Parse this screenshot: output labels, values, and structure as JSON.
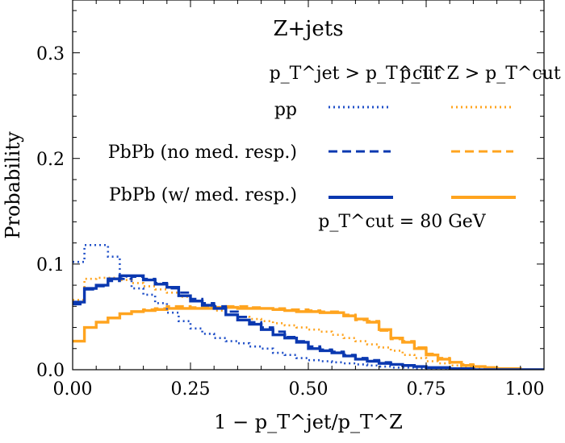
{
  "chart_data": {
    "type": "line",
    "title": "Z+jets",
    "xlabel": "1 − p_T^jet/p_T^Z",
    "ylabel": "Probability",
    "xlim": [
      0,
      1
    ],
    "ylim": [
      0,
      0.35
    ],
    "xticks": [
      "0.00",
      "0.25",
      "0.50",
      "0.75",
      "1.00"
    ],
    "yticks": [
      "0.0",
      "0.1",
      "0.2",
      "0.3"
    ],
    "legend": {
      "col_headers": [
        "p_T^jet > p_T^cut",
        "p_T^Z > p_T^cut"
      ],
      "row_labels": [
        "pp",
        "PbPb (no med. resp.)",
        "PbPb (w/ med. resp.)"
      ],
      "note": "p_T^cut = 80 GeV"
    },
    "bin_width": 0.025,
    "series": [
      {
        "name": "pp, jet cut",
        "color": "#1f4fc8",
        "style": "dotted",
        "values": [
          0.102,
          0.118,
          0.118,
          0.107,
          0.088,
          0.077,
          0.071,
          0.063,
          0.054,
          0.046,
          0.039,
          0.034,
          0.03,
          0.027,
          0.025,
          0.022,
          0.02,
          0.016,
          0.014,
          0.011,
          0.009,
          0.008,
          0.007,
          0.006,
          0.005,
          0.004,
          0.003,
          0.002,
          0.002,
          0.001,
          0.001,
          0.001,
          0.0,
          0.0,
          0.0,
          0.0,
          0.0,
          0.0,
          0.0,
          0.0
        ]
      },
      {
        "name": "PbPb (no med. resp.), jet cut",
        "color": "#0a38b0",
        "style": "dashed",
        "values": [
          0.062,
          0.076,
          0.079,
          0.084,
          0.086,
          0.088,
          0.086,
          0.082,
          0.077,
          0.073,
          0.067,
          0.063,
          0.06,
          0.055,
          0.05,
          0.045,
          0.04,
          0.036,
          0.031,
          0.027,
          0.022,
          0.019,
          0.017,
          0.014,
          0.011,
          0.009,
          0.007,
          0.005,
          0.004,
          0.003,
          0.002,
          0.002,
          0.001,
          0.001,
          0.0,
          0.0,
          0.0,
          0.0,
          0.0,
          0.0
        ]
      },
      {
        "name": "PbPb (w/ med. resp.), jet cut",
        "color": "#0a38b0",
        "style": "solid",
        "values": [
          0.064,
          0.077,
          0.08,
          0.086,
          0.089,
          0.089,
          0.085,
          0.081,
          0.078,
          0.07,
          0.065,
          0.061,
          0.058,
          0.052,
          0.047,
          0.043,
          0.038,
          0.033,
          0.03,
          0.026,
          0.02,
          0.018,
          0.016,
          0.013,
          0.01,
          0.008,
          0.006,
          0.005,
          0.004,
          0.003,
          0.002,
          0.002,
          0.001,
          0.001,
          0.0,
          0.0,
          0.0,
          0.0,
          0.0,
          0.0
        ]
      },
      {
        "name": "pp, Z cut",
        "color": "#ffa41f",
        "style": "dotted",
        "values": [
          0.066,
          0.086,
          0.087,
          0.087,
          0.085,
          0.082,
          0.079,
          0.076,
          0.073,
          0.069,
          0.065,
          0.06,
          0.056,
          0.052,
          0.05,
          0.048,
          0.046,
          0.044,
          0.042,
          0.04,
          0.038,
          0.036,
          0.033,
          0.03,
          0.027,
          0.024,
          0.021,
          0.018,
          0.014,
          0.011,
          0.008,
          0.006,
          0.004,
          0.003,
          0.002,
          0.001,
          0.001,
          0.0,
          0.0,
          0.0
        ]
      },
      {
        "name": "PbPb (no med. resp.), Z cut",
        "color": "#ffa41f",
        "style": "dashed",
        "values": [
          0.027,
          0.04,
          0.045,
          0.049,
          0.053,
          0.055,
          0.057,
          0.058,
          0.06,
          0.06,
          0.059,
          0.06,
          0.059,
          0.06,
          0.06,
          0.059,
          0.058,
          0.058,
          0.057,
          0.057,
          0.056,
          0.055,
          0.055,
          0.052,
          0.047,
          0.046,
          0.037,
          0.029,
          0.027,
          0.021,
          0.015,
          0.011,
          0.007,
          0.005,
          0.003,
          0.002,
          0.001,
          0.001,
          0.0,
          0.0
        ]
      },
      {
        "name": "PbPb (w/ med. resp.), Z cut",
        "color": "#ffa41f",
        "style": "solid",
        "values": [
          0.027,
          0.04,
          0.045,
          0.049,
          0.053,
          0.055,
          0.056,
          0.057,
          0.058,
          0.058,
          0.058,
          0.058,
          0.059,
          0.059,
          0.058,
          0.058,
          0.058,
          0.057,
          0.056,
          0.055,
          0.055,
          0.054,
          0.054,
          0.051,
          0.048,
          0.045,
          0.038,
          0.03,
          0.026,
          0.02,
          0.014,
          0.01,
          0.007,
          0.004,
          0.003,
          0.002,
          0.001,
          0.001,
          0.0,
          0.0
        ]
      }
    ]
  }
}
